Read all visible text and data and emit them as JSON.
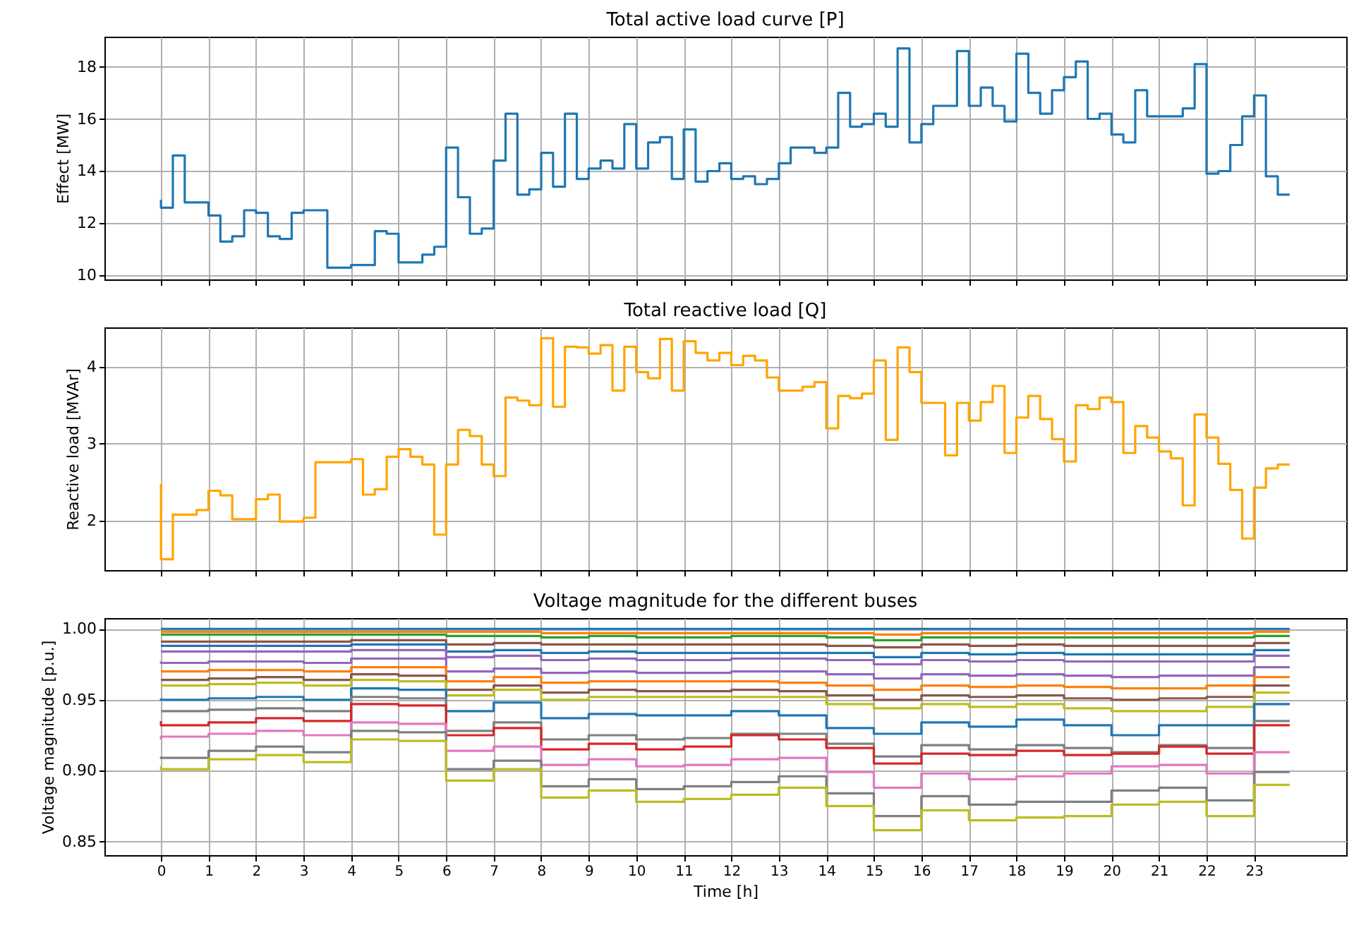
{
  "chart_data": [
    {
      "type": "step",
      "title": "Total active load curve [P]",
      "ylabel": "Effect [MW]",
      "grid": true,
      "tick_labels": "y",
      "color": "#1f77b4",
      "x": [
        0,
        0.25,
        0.5,
        0.75,
        1,
        1.25,
        1.5,
        1.75,
        2,
        2.25,
        2.5,
        2.75,
        3,
        3.25,
        3.5,
        3.75,
        4,
        4.25,
        4.5,
        4.75,
        5,
        5.25,
        5.5,
        5.75,
        6,
        6.25,
        6.5,
        6.75,
        7,
        7.25,
        7.5,
        7.75,
        8,
        8.25,
        8.5,
        8.75,
        9,
        9.25,
        9.5,
        9.75,
        10,
        10.25,
        10.5,
        10.75,
        11,
        11.25,
        11.5,
        11.75,
        12,
        12.25,
        12.5,
        12.75,
        13,
        13.25,
        13.5,
        13.75,
        14,
        14.25,
        14.5,
        14.75,
        15,
        15.25,
        15.5,
        15.75,
        16,
        16.25,
        16.5,
        16.75,
        17,
        17.25,
        17.5,
        17.75,
        18,
        18.25,
        18.5,
        18.75,
        19,
        19.25,
        19.5,
        19.75,
        20,
        20.25,
        20.5,
        20.75,
        21,
        21.25,
        21.5,
        21.75,
        22,
        22.25,
        22.5,
        22.75,
        23,
        23.25,
        23.5,
        23.75
      ],
      "values": [
        12.9,
        12.6,
        14.6,
        12.8,
        12.8,
        12.3,
        11.3,
        11.5,
        12.5,
        12.4,
        11.5,
        11.4,
        12.4,
        12.5,
        12.5,
        10.3,
        10.3,
        10.4,
        10.4,
        11.7,
        11.6,
        10.5,
        10.5,
        10.8,
        11.1,
        14.9,
        13.0,
        11.6,
        11.8,
        14.4,
        16.2,
        13.1,
        13.3,
        14.7,
        13.4,
        16.2,
        13.7,
        14.1,
        14.4,
        14.1,
        15.8,
        14.1,
        15.1,
        15.3,
        13.7,
        15.6,
        13.6,
        14.0,
        14.3,
        13.7,
        13.8,
        13.5,
        13.7,
        14.3,
        14.9,
        14.9,
        14.7,
        14.9,
        17.0,
        15.7,
        15.8,
        16.2,
        15.7,
        18.7,
        15.1,
        15.8,
        16.5,
        16.5,
        18.6,
        16.5,
        17.2,
        16.5,
        15.9,
        18.5,
        17.0,
        16.2,
        17.1,
        17.6,
        18.2,
        16.0,
        16.2,
        15.4,
        15.1,
        17.1,
        16.1,
        16.1,
        16.1,
        16.4,
        18.1,
        13.9,
        14.0,
        15.0,
        16.1,
        16.9,
        13.8,
        13.1
      ],
      "xlim": [
        -1.19,
        24.94
      ],
      "xticks": [
        0,
        1,
        2,
        3,
        4,
        5,
        6,
        7,
        8,
        9,
        10,
        11,
        12,
        13,
        14,
        15,
        16,
        17,
        18,
        19,
        20,
        21,
        22,
        23
      ],
      "ylim": [
        9.85,
        19.15
      ],
      "yticks": [
        10,
        12,
        14,
        16,
        18
      ]
    },
    {
      "type": "step",
      "title": "Total reactive load [Q]",
      "ylabel": "Reactive load [MVAr]",
      "grid": true,
      "tick_labels": "y",
      "color": "#ffa500",
      "x": [
        0,
        0.25,
        0.5,
        0.75,
        1,
        1.25,
        1.5,
        1.75,
        2,
        2.25,
        2.5,
        2.75,
        3,
        3.25,
        3.5,
        3.75,
        4,
        4.25,
        4.5,
        4.75,
        5,
        5.25,
        5.5,
        5.75,
        6,
        6.25,
        6.5,
        6.75,
        7,
        7.25,
        7.5,
        7.75,
        8,
        8.25,
        8.5,
        8.75,
        9,
        9.25,
        9.5,
        9.75,
        10,
        10.25,
        10.5,
        10.75,
        11,
        11.25,
        11.5,
        11.75,
        12,
        12.25,
        12.5,
        12.75,
        13,
        13.25,
        13.5,
        13.75,
        14,
        14.25,
        14.5,
        14.75,
        15,
        15.25,
        15.5,
        15.75,
        16,
        16.25,
        16.5,
        16.75,
        17,
        17.25,
        17.5,
        17.75,
        18,
        18.25,
        18.5,
        18.75,
        19,
        19.25,
        19.5,
        19.75,
        20,
        20.25,
        20.5,
        20.75,
        21,
        21.25,
        21.5,
        21.75,
        22,
        22.25,
        22.5,
        22.75,
        23,
        23.25,
        23.5,
        23.75
      ],
      "values": [
        2.48,
        1.5,
        2.08,
        2.08,
        2.14,
        2.39,
        2.33,
        2.02,
        2.02,
        2.28,
        2.34,
        1.99,
        1.99,
        2.04,
        2.76,
        2.76,
        2.76,
        2.8,
        2.34,
        2.41,
        2.83,
        2.93,
        2.83,
        2.73,
        1.82,
        2.73,
        3.18,
        3.1,
        2.73,
        2.58,
        3.6,
        3.56,
        3.5,
        4.37,
        3.48,
        4.26,
        4.25,
        4.17,
        4.28,
        3.69,
        4.26,
        3.93,
        3.85,
        4.36,
        3.69,
        4.33,
        4.18,
        4.08,
        4.18,
        4.02,
        4.14,
        4.08,
        3.86,
        3.69,
        3.69,
        3.74,
        3.8,
        3.2,
        3.62,
        3.59,
        3.65,
        4.08,
        3.05,
        4.25,
        3.93,
        3.53,
        3.53,
        2.85,
        3.53,
        3.3,
        3.54,
        3.75,
        2.88,
        3.34,
        3.62,
        3.32,
        3.06,
        2.77,
        3.5,
        3.45,
        3.6,
        3.54,
        2.88,
        3.23,
        3.08,
        2.9,
        2.81,
        2.2,
        3.38,
        3.08,
        2.74,
        2.4,
        1.77,
        2.43,
        2.68,
        2.73
      ],
      "xlim": [
        -1.19,
        24.94
      ],
      "xticks": [
        0,
        1,
        2,
        3,
        4,
        5,
        6,
        7,
        8,
        9,
        10,
        11,
        12,
        13,
        14,
        15,
        16,
        17,
        18,
        19,
        20,
        21,
        22,
        23
      ],
      "ylim": [
        1.36,
        4.51
      ],
      "yticks": [
        2,
        3,
        4
      ]
    },
    {
      "type": "step",
      "title": "Voltage magnitude for the different buses",
      "xlabel": "Time [h]",
      "ylabel": "Voltage magnitude [p.u.]",
      "grid": true,
      "x": [
        0,
        1,
        2,
        3,
        4,
        5,
        6,
        7,
        8,
        9,
        10,
        11,
        12,
        13,
        14,
        15,
        16,
        17,
        18,
        19,
        20,
        21,
        22,
        23,
        23.75
      ],
      "xlim": [
        -1.19,
        24.94
      ],
      "xticks": [
        0,
        1,
        2,
        3,
        4,
        5,
        6,
        7,
        8,
        9,
        10,
        11,
        12,
        13,
        14,
        15,
        16,
        17,
        18,
        19,
        20,
        21,
        22,
        23
      ],
      "ylim": [
        0.8404,
        1.0076
      ],
      "yticks": [
        0.85,
        {
          "value": 0.9,
          "label": "0.90"
        },
        0.95,
        {
          "value": 1,
          "label": "1.00"
        }
      ],
      "series": [
        {
          "color": "#1f77b4",
          "values": [
            1.0,
            1.0,
            1.0,
            1.0,
            1.0,
            1.0,
            1.0,
            1.0,
            1.0,
            1.0,
            1.0,
            1.0,
            1.0,
            1.0,
            1.0,
            1.0,
            1.0,
            1.0,
            1.0,
            1.0,
            1.0,
            1.0,
            1.0,
            1.0,
            1.0
          ]
        },
        {
          "color": "#ff7f0e",
          "values": [
            0.998,
            0.998,
            0.998,
            0.998,
            0.998,
            0.998,
            0.998,
            0.998,
            0.998,
            0.997,
            0.997,
            0.997,
            0.997,
            0.997,
            0.997,
            0.997,
            0.996,
            0.997,
            0.997,
            0.997,
            0.997,
            0.997,
            0.997,
            0.997,
            0.998
          ]
        },
        {
          "color": "#2ca02c",
          "values": [
            0.996,
            0.996,
            0.996,
            0.996,
            0.996,
            0.996,
            0.996,
            0.995,
            0.995,
            0.994,
            0.995,
            0.994,
            0.994,
            0.995,
            0.995,
            0.994,
            0.992,
            0.994,
            0.994,
            0.994,
            0.994,
            0.994,
            0.994,
            0.994,
            0.995
          ]
        },
        {
          "color": "#8c564b",
          "values": [
            0.991,
            0.991,
            0.991,
            0.991,
            0.991,
            0.992,
            0.992,
            0.989,
            0.99,
            0.989,
            0.989,
            0.989,
            0.989,
            0.989,
            0.989,
            0.988,
            0.987,
            0.989,
            0.988,
            0.989,
            0.988,
            0.988,
            0.988,
            0.988,
            0.99
          ]
        },
        {
          "color": "#1f77b4",
          "values": [
            0.988,
            0.988,
            0.988,
            0.988,
            0.988,
            0.989,
            0.989,
            0.984,
            0.985,
            0.983,
            0.984,
            0.983,
            0.983,
            0.983,
            0.983,
            0.983,
            0.98,
            0.983,
            0.982,
            0.983,
            0.982,
            0.982,
            0.982,
            0.982,
            0.985
          ]
        },
        {
          "color": "#9467bd",
          "values": [
            0.984,
            0.984,
            0.984,
            0.984,
            0.984,
            0.985,
            0.985,
            0.98,
            0.981,
            0.978,
            0.979,
            0.978,
            0.978,
            0.979,
            0.979,
            0.978,
            0.975,
            0.978,
            0.977,
            0.978,
            0.977,
            0.977,
            0.977,
            0.977,
            0.981
          ]
        },
        {
          "color": "#9467bd",
          "values": [
            0.977,
            0.976,
            0.977,
            0.977,
            0.976,
            0.979,
            0.979,
            0.97,
            0.972,
            0.969,
            0.97,
            0.969,
            0.969,
            0.97,
            0.97,
            0.968,
            0.965,
            0.968,
            0.967,
            0.968,
            0.967,
            0.966,
            0.967,
            0.967,
            0.973
          ]
        },
        {
          "color": "#ff7f0e",
          "values": [
            0.97,
            0.97,
            0.971,
            0.971,
            0.97,
            0.973,
            0.973,
            0.963,
            0.966,
            0.962,
            0.963,
            0.963,
            0.963,
            0.963,
            0.962,
            0.96,
            0.957,
            0.96,
            0.959,
            0.96,
            0.959,
            0.958,
            0.958,
            0.96,
            0.966
          ]
        },
        {
          "color": "#8c564b",
          "values": [
            0.964,
            0.964,
            0.965,
            0.966,
            0.964,
            0.968,
            0.967,
            0.957,
            0.96,
            0.955,
            0.957,
            0.956,
            0.956,
            0.957,
            0.956,
            0.953,
            0.95,
            0.953,
            0.952,
            0.953,
            0.951,
            0.95,
            0.951,
            0.952,
            0.96
          ]
        },
        {
          "color": "#bcbd22",
          "values": [
            0.96,
            0.96,
            0.961,
            0.962,
            0.96,
            0.964,
            0.963,
            0.953,
            0.957,
            0.95,
            0.952,
            0.952,
            0.952,
            0.952,
            0.952,
            0.947,
            0.944,
            0.947,
            0.945,
            0.947,
            0.944,
            0.942,
            0.942,
            0.945,
            0.955
          ]
        },
        {
          "color": "#1f77b4",
          "values": [
            0.951,
            0.95,
            0.951,
            0.952,
            0.95,
            0.958,
            0.957,
            0.942,
            0.948,
            0.937,
            0.94,
            0.939,
            0.939,
            0.942,
            0.939,
            0.93,
            0.926,
            0.934,
            0.931,
            0.936,
            0.932,
            0.925,
            0.932,
            0.932,
            0.947
          ]
        },
        {
          "color": "#7f7f7f",
          "values": [
            0.942,
            0.942,
            0.943,
            0.944,
            0.942,
            0.952,
            0.951,
            0.928,
            0.934,
            0.922,
            0.925,
            0.922,
            0.923,
            0.926,
            0.926,
            0.919,
            0.91,
            0.918,
            0.915,
            0.918,
            0.916,
            0.913,
            0.918,
            0.916,
            0.935
          ]
        },
        {
          "color": "#d62728",
          "values": [
            0.935,
            0.932,
            0.934,
            0.937,
            0.935,
            0.947,
            0.946,
            0.925,
            0.93,
            0.915,
            0.919,
            0.915,
            0.917,
            0.925,
            0.922,
            0.916,
            0.905,
            0.912,
            0.911,
            0.914,
            0.911,
            0.912,
            0.917,
            0.912,
            0.932
          ]
        },
        {
          "color": "#e377c2",
          "values": [
            0.922,
            0.924,
            0.926,
            0.928,
            0.925,
            0.934,
            0.933,
            0.914,
            0.917,
            0.904,
            0.908,
            0.903,
            0.904,
            0.908,
            0.909,
            0.899,
            0.888,
            0.898,
            0.894,
            0.896,
            0.898,
            0.903,
            0.904,
            0.898,
            0.913
          ]
        },
        {
          "color": "#7f7f7f",
          "values": [
            0.91,
            0.909,
            0.914,
            0.917,
            0.913,
            0.928,
            0.927,
            0.901,
            0.907,
            0.889,
            0.894,
            0.887,
            0.889,
            0.892,
            0.896,
            0.884,
            0.868,
            0.882,
            0.876,
            0.878,
            0.878,
            0.886,
            0.888,
            0.879,
            0.899
          ]
        },
        {
          "color": "#bcbd22",
          "values": [
            0.903,
            0.901,
            0.908,
            0.911,
            0.906,
            0.922,
            0.921,
            0.893,
            0.901,
            0.881,
            0.886,
            0.878,
            0.88,
            0.883,
            0.888,
            0.875,
            0.858,
            0.872,
            0.865,
            0.867,
            0.868,
            0.876,
            0.878,
            0.868,
            0.89
          ]
        }
      ]
    }
  ]
}
